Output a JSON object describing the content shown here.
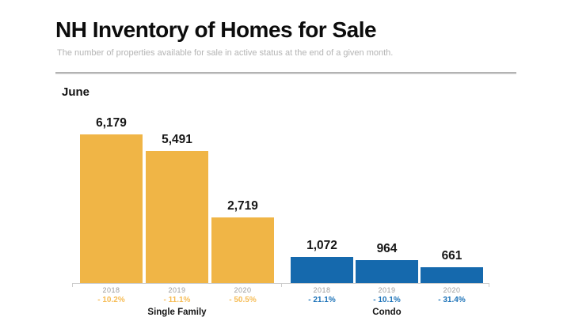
{
  "chart_data": {
    "type": "bar",
    "title": "NH Inventory of Homes for Sale",
    "subtitle": "The number of properties available for sale in active status at the end of a given month.",
    "period": "June",
    "ymax": 6179,
    "grid": false,
    "legend": false,
    "axis_color": "#cccccc",
    "groups": [
      {
        "name": "Single Family",
        "bar_color": "#F0B546",
        "change_color": "#F6BC55",
        "categories": [
          "2018",
          "2019",
          "2020"
        ],
        "values": [
          6179,
          5491,
          2719
        ],
        "value_labels": [
          "6,179",
          "5,491",
          "2,719"
        ],
        "change_labels": [
          "- 10.2%",
          "- 11.1%",
          "- 50.5%"
        ]
      },
      {
        "name": "Condo",
        "bar_color": "#1569AD",
        "change_color": "#1C72B8",
        "categories": [
          "2018",
          "2019",
          "2020"
        ],
        "values": [
          1072,
          964,
          661
        ],
        "value_labels": [
          "1,072",
          "964",
          "661"
        ],
        "change_labels": [
          "- 21.1%",
          "- 10.1%",
          "- 31.4%"
        ]
      }
    ]
  }
}
